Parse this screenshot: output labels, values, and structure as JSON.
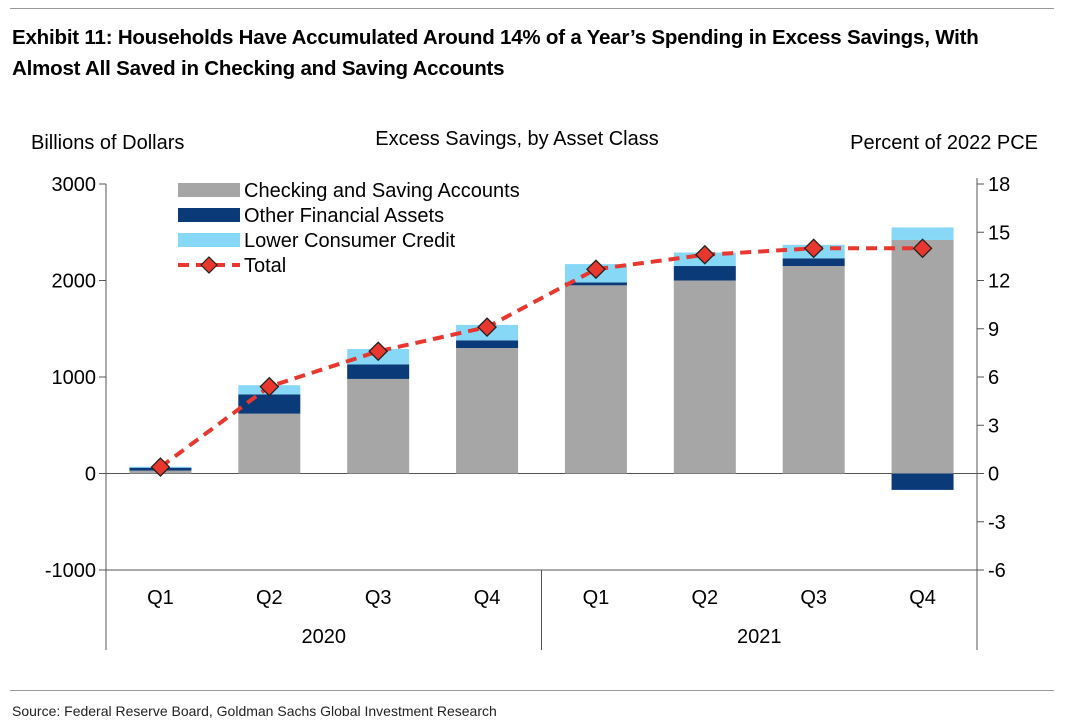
{
  "title_line1": "Exhibit 11: Households Have Accumulated Around 14% of a Year’s Spending in Excess Savings, With",
  "title_line2": "Almost All Saved in Checking and Saving Accounts",
  "source": "Source: Federal Reserve Board, Goldman Sachs Global Investment Research",
  "chart_data": {
    "type": "bar",
    "stacked": true,
    "title": "Excess Savings, by Asset Class",
    "ylabel_left": "Billions of Dollars",
    "ylabel_right": "Percent of 2022 PCE",
    "ylim_left": [
      -1000,
      3000
    ],
    "yticks_left": [
      -1000,
      0,
      1000,
      2000,
      3000
    ],
    "ylim_right": [
      -6,
      18
    ],
    "yticks_right": [
      -6,
      -3,
      0,
      3,
      6,
      9,
      12,
      15,
      18
    ],
    "categories": [
      "Q1",
      "Q2",
      "Q3",
      "Q4",
      "Q1",
      "Q2",
      "Q3",
      "Q4"
    ],
    "groups": [
      {
        "label": "2020",
        "count": 4
      },
      {
        "label": "2021",
        "count": 4
      }
    ],
    "series": [
      {
        "name": "Checking and Saving Accounts",
        "kind": "bar",
        "axis": "left",
        "color": "#a6a6a6",
        "values": [
          30,
          620,
          980,
          1300,
          1950,
          2000,
          2150,
          2420
        ]
      },
      {
        "name": "Other Financial Assets",
        "kind": "bar",
        "axis": "left",
        "color": "#0b3a78",
        "values": [
          30,
          200,
          150,
          80,
          30,
          150,
          80,
          -170
        ]
      },
      {
        "name": "Lower Consumer Credit",
        "kind": "bar",
        "axis": "left",
        "color": "#87d8f7",
        "values": [
          10,
          95,
          160,
          160,
          190,
          140,
          140,
          130
        ]
      },
      {
        "name": "Total",
        "kind": "line",
        "axis": "right",
        "color": "#e8372e",
        "values": [
          0.4,
          5.4,
          7.6,
          9.1,
          12.7,
          13.6,
          14.0,
          14.0
        ]
      }
    ],
    "grid": false,
    "legend_position": "top-left"
  }
}
